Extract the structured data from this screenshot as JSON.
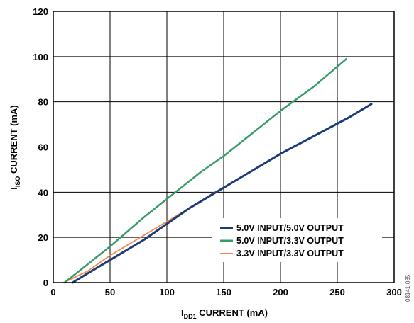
{
  "chart_data": {
    "type": "line",
    "title": "",
    "xlabel": {
      "prefix": "I",
      "sub": "DD1",
      "suffix": " CURRENT (mA)"
    },
    "ylabel": {
      "prefix": "I",
      "sub": "ISO",
      "suffix": " CURRENT (mA)"
    },
    "xlim": [
      0,
      300
    ],
    "ylim": [
      0,
      120
    ],
    "xticks": [
      0,
      50,
      100,
      150,
      200,
      250,
      300
    ],
    "yticks": [
      0,
      20,
      40,
      60,
      80,
      100,
      120
    ],
    "grid": true,
    "legend_position": "lower-right",
    "series": [
      {
        "name": "5.0V INPUT/5.0V OUTPUT",
        "color": "#1b3a7a",
        "x": [
          17,
          30,
          50,
          80,
          100,
          120,
          150,
          180,
          200,
          230,
          260,
          280
        ],
        "y": [
          0,
          4,
          10,
          19,
          26,
          33,
          42,
          51,
          57,
          65,
          73,
          79
        ]
      },
      {
        "name": "5.0V INPUT/3.3V OUTPUT",
        "color": "#3a9b6a",
        "x": [
          10,
          30,
          50,
          80,
          100,
          130,
          150,
          180,
          200,
          230,
          258
        ],
        "y": [
          0,
          8,
          16,
          29,
          37,
          49,
          56,
          68,
          76,
          87,
          99
        ]
      },
      {
        "name": "3.3V INPUT/3.3V OUTPUT",
        "color": "#f08a4a",
        "x": [
          9,
          30,
          50,
          80,
          100,
          120,
          142
        ],
        "y": [
          0,
          5,
          12,
          21,
          27,
          33,
          40
        ]
      }
    ]
  },
  "figure_id": "08141-035"
}
